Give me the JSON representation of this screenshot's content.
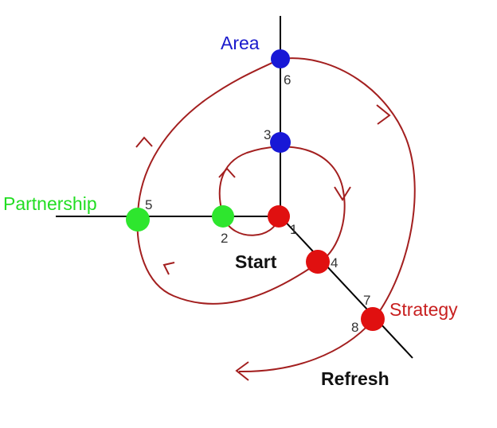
{
  "colors": {
    "background": "#ffffff",
    "axis": "#000000",
    "spiral": "#a31f1f",
    "point_red": "#e01010",
    "point_green": "#2ee62e",
    "point_blue": "#1818d6",
    "label_area": "#1a1acc",
    "label_partnership": "#22dd22",
    "label_strategy": "#c82020",
    "label_black": "#111111",
    "label_number": "#333333"
  },
  "axes": [
    {
      "name": "Area"
    },
    {
      "name": "Partnership"
    },
    {
      "name": "Strategy"
    }
  ],
  "labels": {
    "area": "Area",
    "partnership": "Partnership",
    "strategy": "Strategy",
    "start": "Start",
    "refresh": "Refresh"
  },
  "points": [
    {
      "id": "1",
      "color": "red"
    },
    {
      "id": "2",
      "color": "green"
    },
    {
      "id": "3",
      "color": "blue"
    },
    {
      "id": "4",
      "color": "red"
    },
    {
      "id": "5",
      "color": "green"
    },
    {
      "id": "6",
      "color": "blue"
    },
    {
      "id": "7",
      "color": "red"
    },
    {
      "id": "8",
      "color": "red"
    }
  ],
  "numbers": {
    "n1": "1",
    "n2": "2",
    "n3": "3",
    "n4": "4",
    "n5": "5",
    "n6": "6",
    "n7": "7",
    "n8": "8"
  }
}
